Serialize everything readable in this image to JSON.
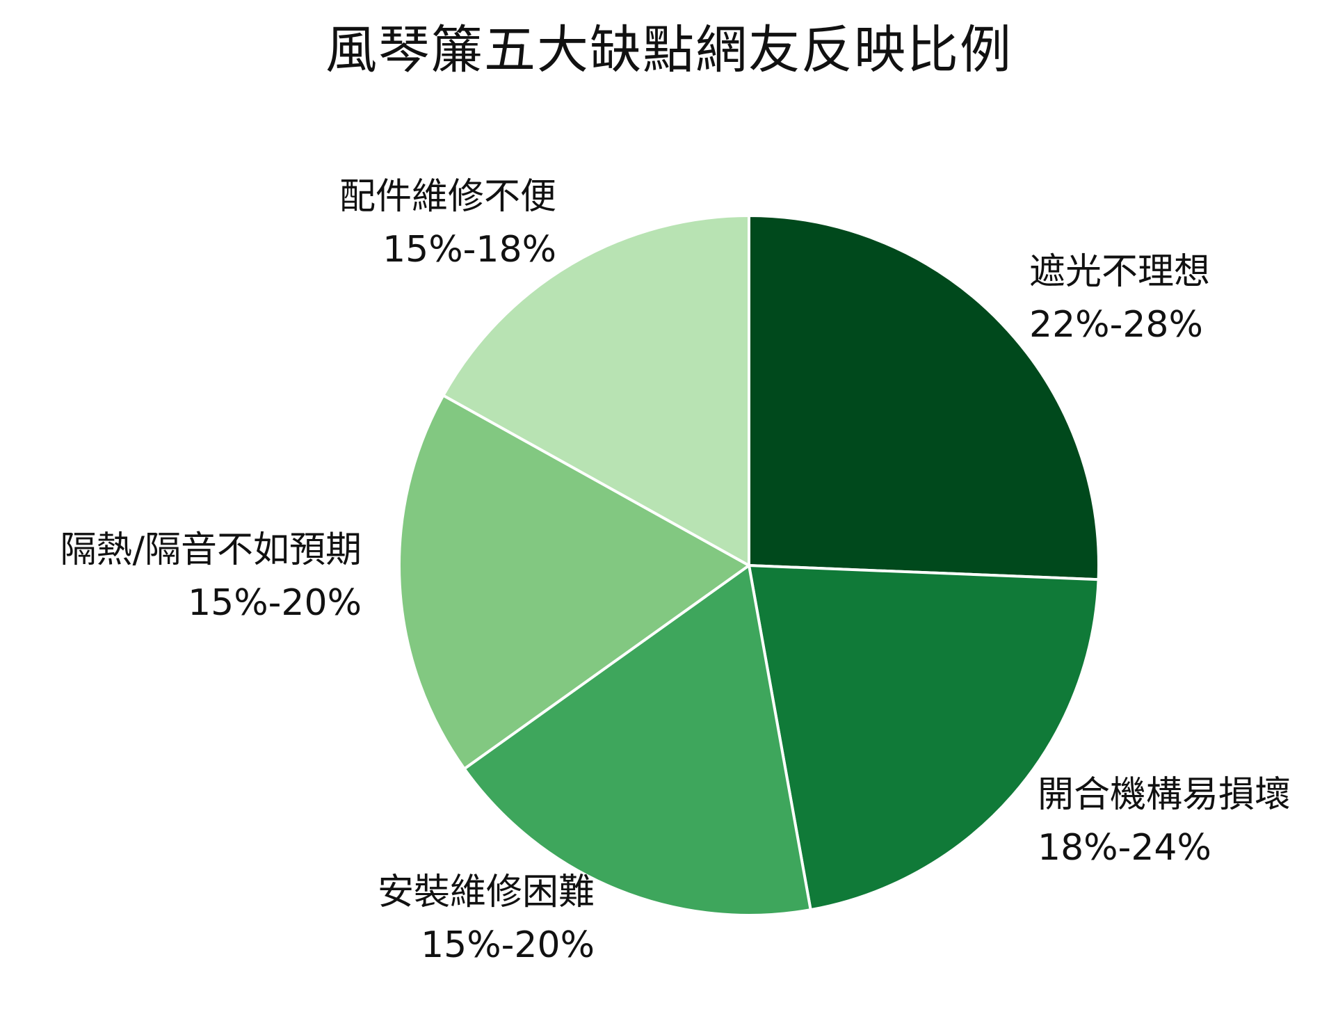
{
  "chart_data": {
    "type": "pie",
    "title": "風琴簾五大缺點網友反映比例",
    "start_angle_deg": 0,
    "direction": "clockwise",
    "slices": [
      {
        "label": "遮光不理想",
        "range_text": "22%-28%",
        "value": 25,
        "color": "#00491c"
      },
      {
        "label": "開合機構易損壞",
        "range_text": "18%-24%",
        "value": 21,
        "color": "#107a38"
      },
      {
        "label": "安裝維修困難",
        "range_text": "15%-20%",
        "value": 17.5,
        "color": "#3ea65c"
      },
      {
        "label": "隔熱/隔音不如預期",
        "range_text": "15%-20%",
        "value": 17.5,
        "color": "#82c881"
      },
      {
        "label": "配件維修不便",
        "range_text": "15%-18%",
        "value": 16.5,
        "color": "#b8e3b3"
      }
    ],
    "slice_border_color": "#ffffff"
  }
}
